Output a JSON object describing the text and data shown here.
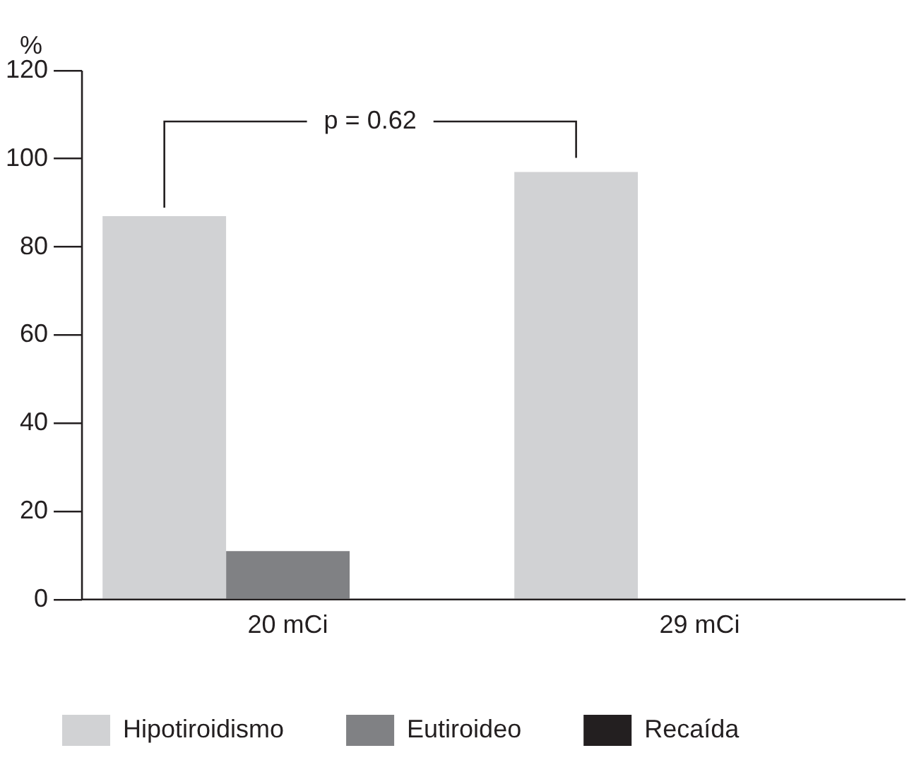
{
  "chart_data": {
    "type": "bar",
    "ylabel": "%",
    "categories": [
      "20 mCi",
      "29 mCi"
    ],
    "series": [
      {
        "name": "Hipotiroidismo",
        "color": "#d1d2d4",
        "values": [
          87,
          97
        ]
      },
      {
        "name": "Eutiroideo",
        "color": "#808184",
        "values": [
          11,
          0
        ]
      },
      {
        "name": "Recaída",
        "color": "#231f20",
        "values": [
          0,
          0
        ]
      }
    ],
    "ylim": [
      0,
      120
    ],
    "yticks": [
      0,
      20,
      40,
      60,
      80,
      100,
      120
    ],
    "grid": false,
    "legend": "bottom left",
    "annotations": [
      "p = 0.62"
    ]
  }
}
